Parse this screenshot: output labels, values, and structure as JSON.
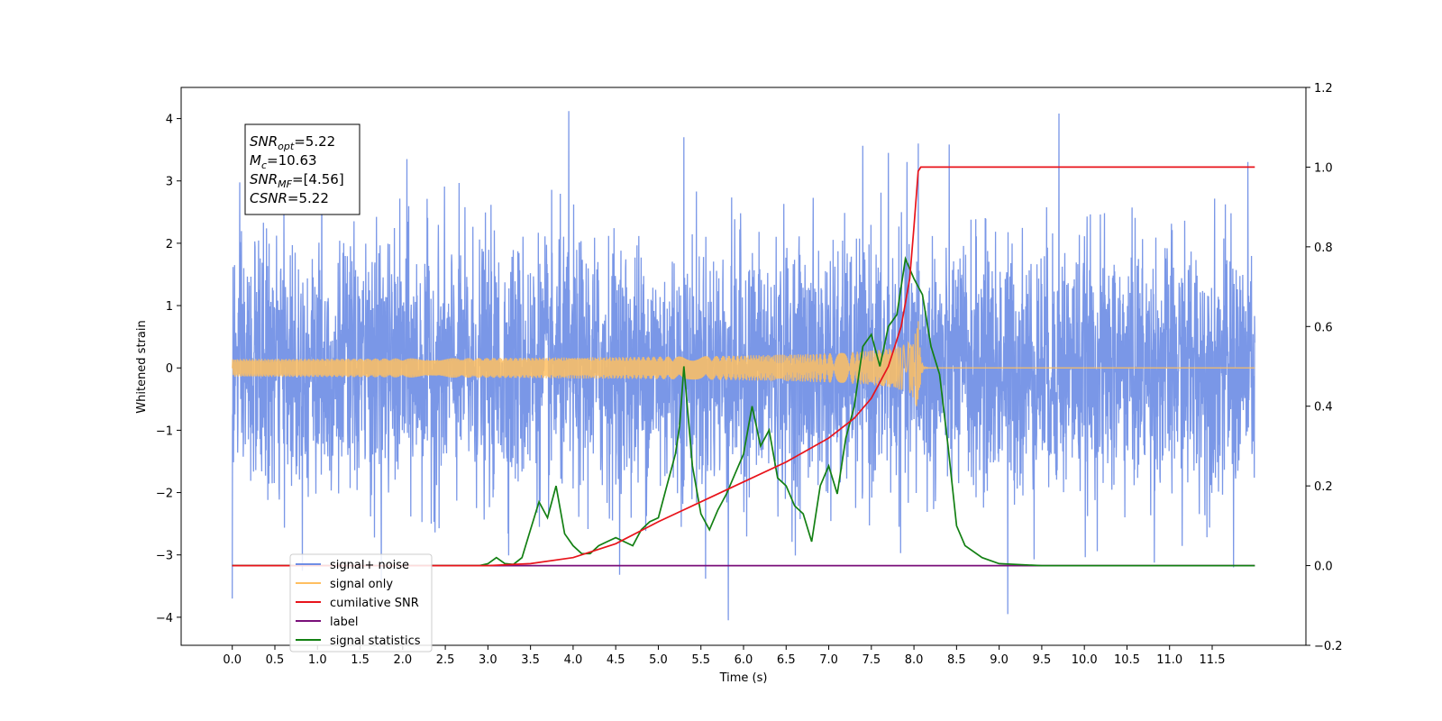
{
  "chart_data": {
    "type": "line",
    "xlabel": "Time (s)",
    "ylabel_left": "Whitened strain",
    "xlim": [
      -0.6,
      12.6
    ],
    "ylim_left": [
      -4.45,
      4.5
    ],
    "ylim_right": [
      -0.2,
      1.2
    ],
    "x_ticks": [
      "0.0",
      "0.5",
      "1.0",
      "1.5",
      "2.0",
      "2.5",
      "3.0",
      "3.5",
      "4.0",
      "4.5",
      "5.0",
      "5.5",
      "6.0",
      "6.5",
      "7.0",
      "7.5",
      "8.0",
      "8.5",
      "9.0",
      "9.5",
      "10.0",
      "10.5",
      "11.0",
      "11.5"
    ],
    "y_left_ticks": [
      "−4",
      "−3",
      "−2",
      "−1",
      "0",
      "1",
      "2",
      "3",
      "4"
    ],
    "y_right_ticks": [
      "−0.2",
      "0.0",
      "0.2",
      "0.4",
      "0.6",
      "0.8",
      "1.0",
      "1.2"
    ],
    "info_box": [
      {
        "main": "SNR",
        "sub": "opt",
        "rest": "=5.22"
      },
      {
        "main": "M",
        "sub": "c",
        "rest": "=10.63"
      },
      {
        "main": "SNR",
        "sub": "MF",
        "rest": "=[4.56]"
      },
      {
        "main": "CSNR",
        "sub": "",
        "rest": "=5.22"
      }
    ],
    "legend": {
      "placement": "lower-left",
      "entries": [
        {
          "label": "signal+ noise",
          "color": "#6f8ee5"
        },
        {
          "label": "signal only",
          "color": "#ffbf60"
        },
        {
          "label": "cumilative SNR",
          "color": "#e8141b"
        },
        {
          "label": "label",
          "color": "#7a0f7a"
        },
        {
          "label": "signal statistics",
          "color": "#138013"
        }
      ]
    },
    "series": [
      {
        "name": "signal+ noise",
        "axis": "left",
        "color": "#6f8ee5",
        "t_range": [
          0.0,
          12.0
        ],
        "noise_sigma": 1.0,
        "outliers": [
          [
            0.0,
            -3.7
          ],
          [
            3.95,
            4.12
          ],
          [
            5.3,
            3.7
          ],
          [
            5.82,
            -4.05
          ],
          [
            7.7,
            3.45
          ],
          [
            8.05,
            3.6
          ],
          [
            9.1,
            -3.95
          ],
          [
            9.7,
            4.08
          ],
          [
            11.75,
            -3.2
          ],
          [
            1.05,
            3.5
          ],
          [
            1.75,
            -3.4
          ],
          [
            2.05,
            3.35
          ]
        ]
      },
      {
        "name": "signal only",
        "axis": "left",
        "color": "#ffbf60",
        "chirp": {
          "t_start": 0.0,
          "t_merge": 8.05,
          "t_end": 12.0,
          "peak_amplitude": 0.95,
          "ringdown": 0.02
        }
      },
      {
        "name": "cumilative SNR",
        "axis": "right",
        "color": "#e8141b",
        "x": [
          0.0,
          3.0,
          3.5,
          4.0,
          4.5,
          5.0,
          5.5,
          6.0,
          6.5,
          7.0,
          7.3,
          7.5,
          7.7,
          7.85,
          7.95,
          8.0,
          8.05,
          8.08,
          12.0
        ],
        "y": [
          0.0,
          0.0,
          0.005,
          0.02,
          0.055,
          0.11,
          0.16,
          0.21,
          0.26,
          0.32,
          0.37,
          0.42,
          0.5,
          0.6,
          0.72,
          0.85,
          0.99,
          1.0,
          1.0
        ]
      },
      {
        "name": "label",
        "axis": "right",
        "color": "#7a0f7a",
        "x": [
          0.0,
          12.0
        ],
        "y": [
          0.0,
          0.0
        ]
      },
      {
        "name": "signal statistics",
        "axis": "right",
        "color": "#138013",
        "x": [
          0.0,
          2.9,
          3.0,
          3.1,
          3.2,
          3.3,
          3.4,
          3.5,
          3.6,
          3.7,
          3.8,
          3.9,
          4.0,
          4.1,
          4.2,
          4.3,
          4.4,
          4.5,
          4.6,
          4.7,
          4.8,
          4.9,
          5.0,
          5.1,
          5.2,
          5.25,
          5.3,
          5.4,
          5.5,
          5.6,
          5.7,
          5.8,
          5.9,
          6.0,
          6.1,
          6.2,
          6.3,
          6.4,
          6.5,
          6.6,
          6.7,
          6.8,
          6.9,
          7.0,
          7.1,
          7.2,
          7.3,
          7.4,
          7.5,
          7.6,
          7.7,
          7.8,
          7.9,
          8.0,
          8.1,
          8.2,
          8.3,
          8.4,
          8.5,
          8.6,
          8.8,
          9.0,
          9.5,
          12.0
        ],
        "y": [
          0.0,
          0.0,
          0.005,
          0.02,
          0.005,
          0.003,
          0.02,
          0.09,
          0.16,
          0.12,
          0.2,
          0.08,
          0.05,
          0.03,
          0.03,
          0.05,
          0.06,
          0.07,
          0.06,
          0.05,
          0.09,
          0.11,
          0.12,
          0.2,
          0.28,
          0.35,
          0.5,
          0.25,
          0.13,
          0.09,
          0.14,
          0.18,
          0.23,
          0.28,
          0.4,
          0.3,
          0.34,
          0.22,
          0.2,
          0.15,
          0.13,
          0.06,
          0.2,
          0.25,
          0.18,
          0.32,
          0.4,
          0.55,
          0.58,
          0.5,
          0.6,
          0.63,
          0.77,
          0.72,
          0.68,
          0.55,
          0.48,
          0.3,
          0.1,
          0.05,
          0.02,
          0.005,
          0.0,
          0.0
        ]
      }
    ]
  }
}
